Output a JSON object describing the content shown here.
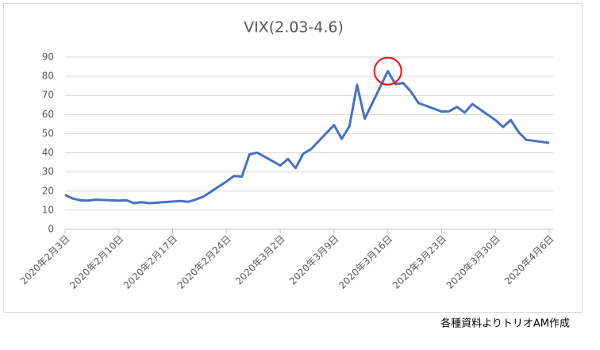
{
  "chart_data": {
    "type": "line",
    "title": "VIX(2.03-4.6)",
    "x": [
      "2020-02-03",
      "2020-02-04",
      "2020-02-05",
      "2020-02-06",
      "2020-02-07",
      "2020-02-10",
      "2020-02-11",
      "2020-02-12",
      "2020-02-13",
      "2020-02-14",
      "2020-02-18",
      "2020-02-19",
      "2020-02-20",
      "2020-02-21",
      "2020-02-24",
      "2020-02-25",
      "2020-02-26",
      "2020-02-27",
      "2020-02-28",
      "2020-03-02",
      "2020-03-03",
      "2020-03-04",
      "2020-03-05",
      "2020-03-06",
      "2020-03-09",
      "2020-03-10",
      "2020-03-11",
      "2020-03-12",
      "2020-03-13",
      "2020-03-16",
      "2020-03-17",
      "2020-03-18",
      "2020-03-19",
      "2020-03-20",
      "2020-03-23",
      "2020-03-24",
      "2020-03-25",
      "2020-03-26",
      "2020-03-27",
      "2020-03-30",
      "2020-03-31",
      "2020-04-01",
      "2020-04-02",
      "2020-04-03",
      "2020-04-06"
    ],
    "series": [
      {
        "name": "VIX",
        "color": "#4472c4",
        "values": [
          18.0,
          16.1,
          15.2,
          15.0,
          15.5,
          15.0,
          15.2,
          13.7,
          14.2,
          13.7,
          14.8,
          14.4,
          15.6,
          17.1,
          25.0,
          27.9,
          27.6,
          39.2,
          40.1,
          33.4,
          36.8,
          32.0,
          39.6,
          41.9,
          54.5,
          47.3,
          53.9,
          75.5,
          57.8,
          82.7,
          75.9,
          76.5,
          72.0,
          66.0,
          61.6,
          61.7,
          64.0,
          61.0,
          65.5,
          57.1,
          53.5,
          57.1,
          50.9,
          46.8,
          45.2
        ]
      }
    ],
    "xlim": [
      "2020-02-03",
      "2020-04-06"
    ],
    "xticks": [
      {
        "value": "2020-02-03",
        "label": "2020年2月3日"
      },
      {
        "value": "2020-02-10",
        "label": "2020年2月10日"
      },
      {
        "value": "2020-02-17",
        "label": "2020年2月17日"
      },
      {
        "value": "2020-02-24",
        "label": "2020年2月24日"
      },
      {
        "value": "2020-03-02",
        "label": "2020年3月2日"
      },
      {
        "value": "2020-03-09",
        "label": "2020年3月9日"
      },
      {
        "value": "2020-03-16",
        "label": "2020年3月16日"
      },
      {
        "value": "2020-03-23",
        "label": "2020年3月23日"
      },
      {
        "value": "2020-03-30",
        "label": "2020年3月30日"
      },
      {
        "value": "2020-04-06",
        "label": "2020年4月6日"
      }
    ],
    "ylim": [
      0,
      90
    ],
    "yticks": [
      0,
      10,
      20,
      30,
      40,
      50,
      60,
      70,
      80,
      90
    ],
    "grid": true,
    "source": "各種資料よりトリオAM作成"
  }
}
